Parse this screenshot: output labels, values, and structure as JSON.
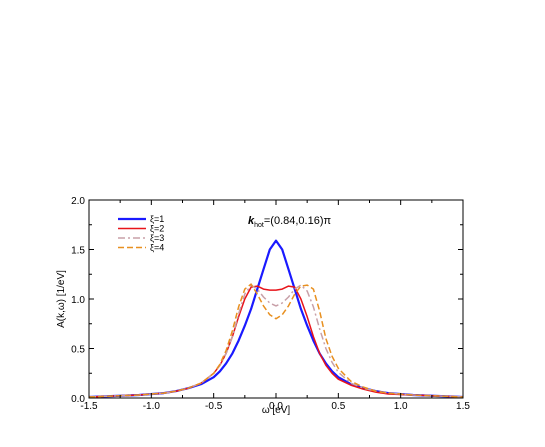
{
  "chart_data": {
    "type": "line",
    "title": "",
    "annotation": "k_hot=(0.84,0.16)π",
    "xlabel": "ω [eV]",
    "ylabel": "A(k,ω) [1/eV]",
    "xlim": [
      -1.5,
      1.5
    ],
    "ylim": [
      0.0,
      2.0
    ],
    "xticks": [
      "-1.5",
      "-1.0",
      "-0.5",
      "0.0",
      "0.5",
      "1.0",
      "1.5"
    ],
    "yticks": [
      "0.0",
      "0.5",
      "1.0",
      "1.5",
      "2.0"
    ],
    "grid": false,
    "legend_placement": "top-left",
    "series": [
      {
        "name": "ξ=1",
        "color": "#1a1aff",
        "style": "solid",
        "x": [
          -1.5,
          -1.3,
          -1.1,
          -0.9,
          -0.8,
          -0.7,
          -0.6,
          -0.5,
          -0.45,
          -0.4,
          -0.35,
          -0.3,
          -0.25,
          -0.2,
          -0.15,
          -0.1,
          -0.05,
          0.0,
          0.05,
          0.1,
          0.15,
          0.2,
          0.25,
          0.3,
          0.35,
          0.4,
          0.45,
          0.5,
          0.6,
          0.7,
          0.8,
          0.9,
          1.1,
          1.3,
          1.5
        ],
        "y": [
          0.01,
          0.02,
          0.03,
          0.05,
          0.07,
          0.1,
          0.14,
          0.21,
          0.27,
          0.35,
          0.45,
          0.58,
          0.73,
          0.9,
          1.1,
          1.3,
          1.5,
          1.59,
          1.5,
          1.3,
          1.1,
          0.9,
          0.73,
          0.58,
          0.45,
          0.35,
          0.27,
          0.21,
          0.14,
          0.1,
          0.07,
          0.05,
          0.03,
          0.02,
          0.01
        ]
      },
      {
        "name": "ξ=2",
        "color": "#e8141a",
        "style": "solid",
        "x": [
          -1.5,
          -1.3,
          -1.1,
          -0.9,
          -0.8,
          -0.7,
          -0.6,
          -0.5,
          -0.45,
          -0.4,
          -0.35,
          -0.3,
          -0.25,
          -0.2,
          -0.15,
          -0.1,
          -0.05,
          0.0,
          0.05,
          0.1,
          0.15,
          0.2,
          0.25,
          0.3,
          0.35,
          0.4,
          0.45,
          0.5,
          0.6,
          0.7,
          0.8,
          0.9,
          1.1,
          1.3,
          1.5
        ],
        "y": [
          0.01,
          0.02,
          0.03,
          0.05,
          0.07,
          0.1,
          0.15,
          0.25,
          0.33,
          0.45,
          0.62,
          0.82,
          1.0,
          1.12,
          1.13,
          1.1,
          1.09,
          1.09,
          1.1,
          1.13,
          1.12,
          1.0,
          0.82,
          0.62,
          0.45,
          0.33,
          0.25,
          0.19,
          0.13,
          0.09,
          0.06,
          0.04,
          0.03,
          0.02,
          0.01
        ]
      },
      {
        "name": "ξ=3",
        "color": "#c8a0a8",
        "style": "dashdot",
        "x": [
          -1.5,
          -1.3,
          -1.1,
          -0.9,
          -0.8,
          -0.7,
          -0.6,
          -0.5,
          -0.45,
          -0.4,
          -0.35,
          -0.3,
          -0.25,
          -0.2,
          -0.15,
          -0.1,
          -0.05,
          0.0,
          0.05,
          0.1,
          0.15,
          0.2,
          0.25,
          0.3,
          0.35,
          0.4,
          0.45,
          0.5,
          0.6,
          0.7,
          0.8,
          0.9,
          1.1,
          1.3,
          1.5
        ],
        "y": [
          0.01,
          0.02,
          0.03,
          0.05,
          0.07,
          0.1,
          0.15,
          0.25,
          0.33,
          0.45,
          0.62,
          0.85,
          1.05,
          1.14,
          1.1,
          1.02,
          0.96,
          0.93,
          0.96,
          1.02,
          1.1,
          1.14,
          1.08,
          0.92,
          0.7,
          0.5,
          0.36,
          0.26,
          0.15,
          0.1,
          0.07,
          0.05,
          0.03,
          0.02,
          0.01
        ]
      },
      {
        "name": "ξ=4",
        "color": "#e89020",
        "style": "dashed",
        "x": [
          -1.5,
          -1.3,
          -1.1,
          -0.9,
          -0.8,
          -0.7,
          -0.6,
          -0.5,
          -0.45,
          -0.4,
          -0.35,
          -0.3,
          -0.25,
          -0.2,
          -0.15,
          -0.1,
          -0.05,
          0.0,
          0.05,
          0.1,
          0.15,
          0.2,
          0.25,
          0.3,
          0.35,
          0.4,
          0.45,
          0.5,
          0.6,
          0.7,
          0.8,
          0.9,
          1.1,
          1.3,
          1.5
        ],
        "y": [
          0.01,
          0.02,
          0.03,
          0.05,
          0.07,
          0.1,
          0.15,
          0.25,
          0.34,
          0.48,
          0.68,
          0.92,
          1.1,
          1.15,
          1.05,
          0.93,
          0.84,
          0.8,
          0.84,
          0.93,
          1.05,
          1.13,
          1.14,
          1.1,
          0.88,
          0.6,
          0.42,
          0.3,
          0.17,
          0.11,
          0.07,
          0.05,
          0.03,
          0.02,
          0.01
        ]
      }
    ]
  }
}
